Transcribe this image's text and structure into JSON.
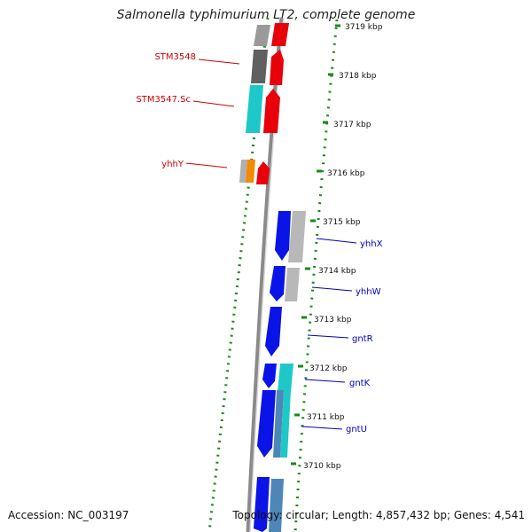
{
  "title": "Salmonella typhimurium LT2, complete genome",
  "footer": {
    "accession": "Accession: NC_003197",
    "summary": "Topology: circular; Length: 4,857,432 bp; Genes: 4,541"
  },
  "scale_labels": [
    "3719 kbp",
    "3718 kbp",
    "3717 kbp",
    "3716 kbp",
    "3715 kbp",
    "3714 kbp",
    "3713 kbp",
    "3712 kbp",
    "3711 kbp",
    "3710 kbp"
  ],
  "gene_labels": {
    "reverse": [
      "STM3548",
      "STM3547.Sc",
      "yhhY"
    ],
    "forward": [
      "yhhX",
      "yhhW",
      "gntR",
      "gntK",
      "gntU"
    ]
  },
  "colors": {
    "reverse_cds": "#e8000b",
    "forward_cds": "#0a14e6",
    "reverse_label": "#cc0000",
    "forward_label": "#0000bb",
    "gc_skew": "#1a8a1a",
    "backbone": "#8a8a8a",
    "gray_feature": "#b0b0b0",
    "dark_feature": "#606060",
    "cyan_feature": "#1fc8c8",
    "orange_feature": "#f28a00",
    "steel_feature": "#4f86b8"
  }
}
